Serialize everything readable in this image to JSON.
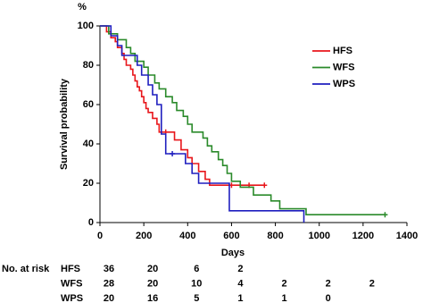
{
  "chart_data": {
    "type": "step",
    "y_unit_label": "%",
    "y_label": "Survival probability",
    "x_label": "Days",
    "xlim": [
      0,
      1400
    ],
    "xticks": [
      0,
      200,
      400,
      600,
      800,
      1000,
      1200,
      1400
    ],
    "ylim": [
      0,
      100
    ],
    "yticks": [
      0,
      20,
      40,
      60,
      80,
      100
    ],
    "legend": "upper right",
    "series": [
      {
        "name": "HFS",
        "color": "#e8161b",
        "x": [
          0,
          30,
          50,
          70,
          80,
          100,
          110,
          120,
          140,
          150,
          160,
          170,
          180,
          190,
          200,
          210,
          220,
          240,
          260,
          270,
          340,
          370,
          400,
          420,
          450,
          480,
          500,
          750
        ],
        "values": [
          100,
          97,
          94,
          92,
          89,
          86,
          83,
          80,
          78,
          75,
          72,
          69,
          67,
          64,
          61,
          58,
          56,
          53,
          50,
          46,
          42,
          37,
          33,
          30,
          26,
          22,
          19,
          19
        ],
        "censored": {
          "x": [
            300,
            600,
            680,
            750
          ],
          "values": [
            46,
            19,
            19,
            19
          ]
        }
      },
      {
        "name": "WFS",
        "color": "#2a8a2a",
        "x": [
          0,
          40,
          80,
          120,
          140,
          160,
          200,
          220,
          250,
          270,
          300,
          330,
          350,
          380,
          400,
          420,
          470,
          490,
          510,
          540,
          560,
          580,
          600,
          640,
          700,
          780,
          820,
          940,
          1300
        ],
        "values": [
          100,
          96,
          93,
          89,
          86,
          82,
          79,
          75,
          71,
          68,
          64,
          61,
          57,
          54,
          50,
          46,
          43,
          39,
          36,
          32,
          29,
          25,
          21,
          18,
          14,
          11,
          7,
          4,
          4
        ],
        "censored": {
          "x": [
            1300
          ],
          "values": [
            4
          ]
        }
      },
      {
        "name": "WPS",
        "color": "#1f1fbf",
        "x": [
          0,
          50,
          80,
          100,
          170,
          190,
          220,
          240,
          260,
          280,
          300,
          390,
          420,
          450,
          590,
          930
        ],
        "values": [
          100,
          95,
          90,
          85,
          80,
          75,
          70,
          65,
          60,
          45,
          35,
          30,
          25,
          20,
          6,
          0
        ],
        "censored": {
          "x": [
            330
          ],
          "values": [
            35
          ]
        }
      }
    ],
    "risk_table": {
      "label": "No. at risk",
      "rows": [
        {
          "name": "HFS",
          "values": [
            36,
            20,
            6,
            2
          ]
        },
        {
          "name": "WFS",
          "values": [
            28,
            20,
            10,
            4,
            2,
            2,
            2
          ]
        },
        {
          "name": "WPS",
          "values": [
            20,
            16,
            5,
            1,
            1,
            0
          ]
        }
      ]
    }
  }
}
